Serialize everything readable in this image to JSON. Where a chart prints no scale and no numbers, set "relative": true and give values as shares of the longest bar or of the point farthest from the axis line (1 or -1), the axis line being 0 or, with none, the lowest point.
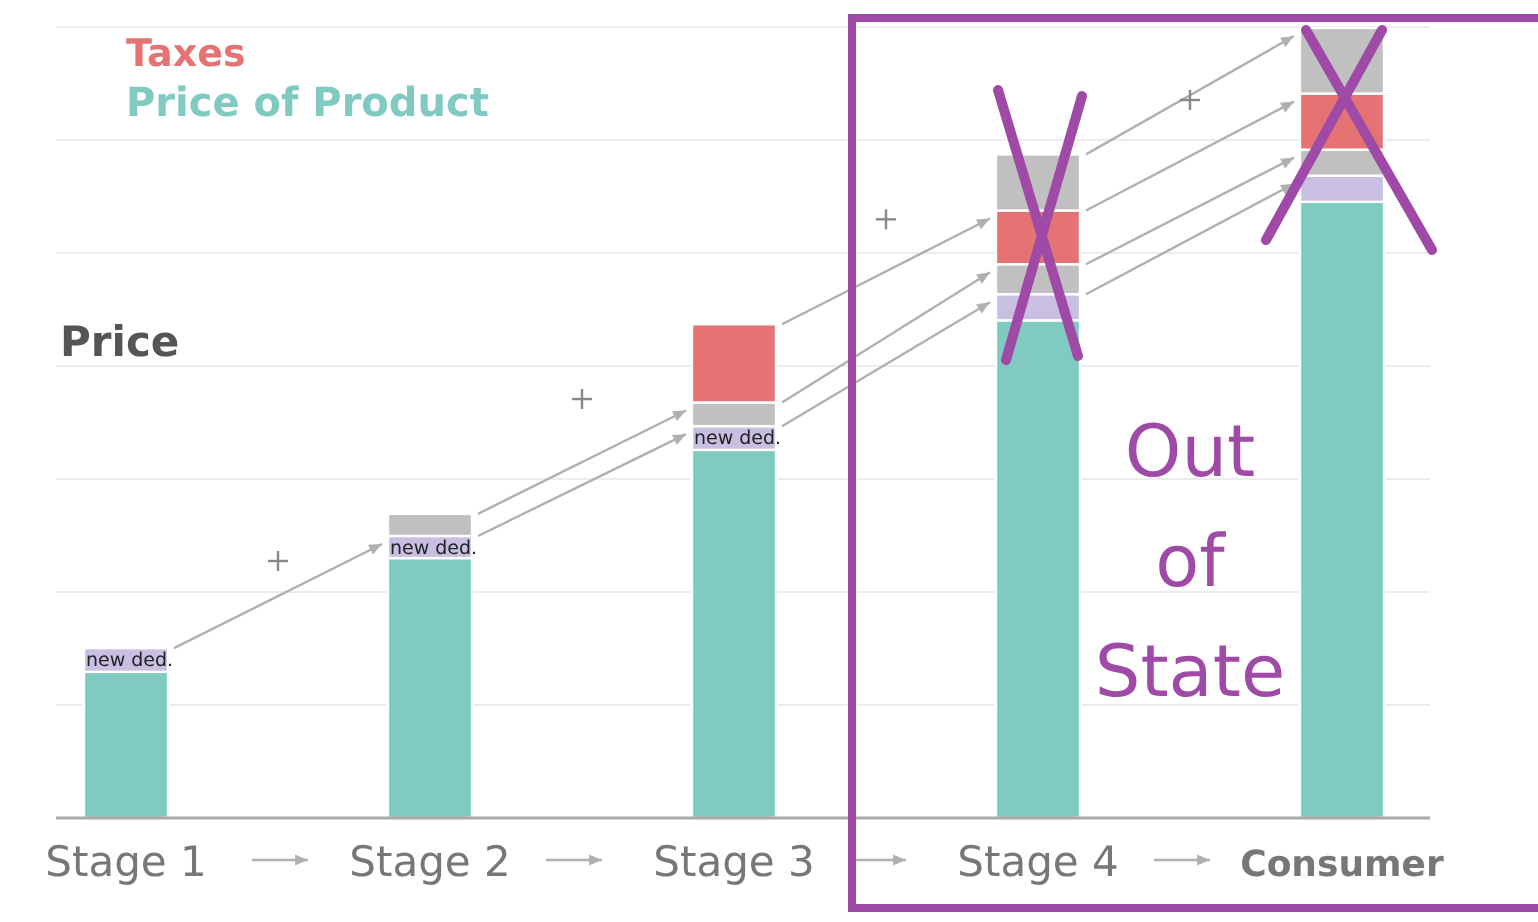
{
  "chart_data": {
    "type": "bar",
    "stacked": true,
    "relative": true,
    "ylabel": "Price",
    "grid": "y",
    "legend": "top left",
    "categories": [
      "Stage 1",
      "Stage 2",
      "Stage 3",
      "Stage 4",
      "Consumer"
    ],
    "series": [
      {
        "name": "Price of Product",
        "color": "#80cac1",
        "values": [
          0.185,
          0.329,
          0.466,
          0.63,
          0.78
        ]
      },
      {
        "color": "#c9bfe3",
        "values": [
          0.03,
          0.028,
          0.03,
          0.033,
          0.033
        ]
      },
      {
        "color": "#c0c0c0",
        "values": [
          null,
          0.028,
          0.03,
          0.038,
          0.033
        ]
      },
      {
        "name": "Taxes",
        "color": "#e57373",
        "values": [
          null,
          null,
          0.099,
          0.068,
          0.071
        ]
      },
      {
        "color": "#c0c0c0",
        "values": [
          null,
          null,
          null,
          0.071,
          0.083
        ]
      }
    ],
    "annotations": [
      "new ded.",
      "new ded.",
      "new ded.",
      "Out of State"
    ]
  }
}
